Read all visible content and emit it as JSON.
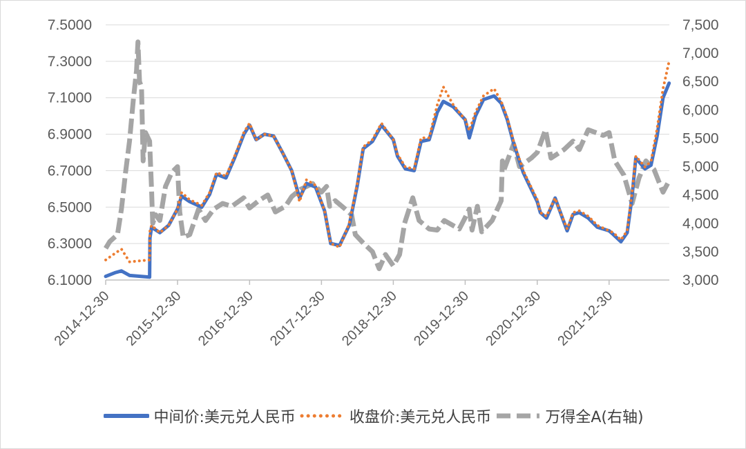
{
  "chart_data": {
    "type": "line",
    "title": "",
    "left_axis": {
      "min": 6.1,
      "max": 7.5,
      "ticks": [
        "6.1000",
        "6.3000",
        "6.5000",
        "6.7000",
        "6.9000",
        "7.1000",
        "7.3000",
        "7.5000"
      ]
    },
    "right_axis": {
      "min": 3000,
      "max": 7500,
      "ticks": [
        "3,000",
        "3,500",
        "4,000",
        "4,500",
        "5,000",
        "5,500",
        "6,000",
        "6,500",
        "7,000",
        "7,500"
      ]
    },
    "x_ticks": [
      "2014-12-30",
      "2015-12-30",
      "2016-12-30",
      "2017-12-30",
      "2018-12-30",
      "2019-12-30",
      "2020-12-30",
      "2021-12-30"
    ],
    "x_range": [
      "2014-12-30",
      "2022-11-01"
    ],
    "grid": "horizontal",
    "legend_position": "bottom",
    "series": [
      {
        "name": "中间价:美元兑人民币",
        "axis": "left",
        "color": "#4472c4",
        "style": "solid",
        "points": [
          [
            "2014-12-30",
            6.12
          ],
          [
            "2015-02-15",
            6.14
          ],
          [
            "2015-03-20",
            6.15
          ],
          [
            "2015-05-01",
            6.125
          ],
          [
            "2015-08-10",
            6.116
          ],
          [
            "2015-08-12",
            6.33
          ],
          [
            "2015-08-20",
            6.39
          ],
          [
            "2015-10-01",
            6.36
          ],
          [
            "2015-11-15",
            6.4
          ],
          [
            "2015-12-30",
            6.49
          ],
          [
            "2016-01-20",
            6.56
          ],
          [
            "2016-03-01",
            6.53
          ],
          [
            "2016-05-01",
            6.5
          ],
          [
            "2016-06-10",
            6.57
          ],
          [
            "2016-07-15",
            6.68
          ],
          [
            "2016-09-01",
            6.66
          ],
          [
            "2016-10-15",
            6.77
          ],
          [
            "2016-12-01",
            6.9
          ],
          [
            "2016-12-30",
            6.95
          ],
          [
            "2017-02-01",
            6.87
          ],
          [
            "2017-03-15",
            6.9
          ],
          [
            "2017-05-01",
            6.89
          ],
          [
            "2017-06-15",
            6.8
          ],
          [
            "2017-08-01",
            6.7
          ],
          [
            "2017-09-10",
            6.55
          ],
          [
            "2017-10-15",
            6.63
          ],
          [
            "2017-11-30",
            6.61
          ],
          [
            "2018-01-15",
            6.48
          ],
          [
            "2018-02-15",
            6.3
          ],
          [
            "2018-04-01",
            6.29
          ],
          [
            "2018-05-20",
            6.4
          ],
          [
            "2018-06-30",
            6.62
          ],
          [
            "2018-07-30",
            6.82
          ],
          [
            "2018-09-15",
            6.86
          ],
          [
            "2018-10-31",
            6.95
          ],
          [
            "2018-12-30",
            6.87
          ],
          [
            "2019-01-20",
            6.78
          ],
          [
            "2019-03-01",
            6.71
          ],
          [
            "2019-04-15",
            6.7
          ],
          [
            "2019-05-20",
            6.86
          ],
          [
            "2019-06-30",
            6.87
          ],
          [
            "2019-08-10",
            7.02
          ],
          [
            "2019-09-10",
            7.08
          ],
          [
            "2019-10-31",
            7.05
          ],
          [
            "2019-12-30",
            6.98
          ],
          [
            "2020-01-20",
            6.88
          ],
          [
            "2020-02-20",
            7.0
          ],
          [
            "2020-04-01",
            7.09
          ],
          [
            "2020-05-25",
            7.11
          ],
          [
            "2020-06-30",
            7.07
          ],
          [
            "2020-07-31",
            6.98
          ],
          [
            "2020-09-01",
            6.85
          ],
          [
            "2020-10-20",
            6.69
          ],
          [
            "2020-12-30",
            6.53
          ],
          [
            "2021-01-15",
            6.47
          ],
          [
            "2021-02-15",
            6.44
          ],
          [
            "2021-03-31",
            6.55
          ],
          [
            "2021-04-20",
            6.49
          ],
          [
            "2021-05-31",
            6.37
          ],
          [
            "2021-06-30",
            6.46
          ],
          [
            "2021-08-01",
            6.47
          ],
          [
            "2021-09-15",
            6.44
          ],
          [
            "2021-10-31",
            6.39
          ],
          [
            "2021-12-30",
            6.37
          ],
          [
            "2022-01-20",
            6.35
          ],
          [
            "2022-02-28",
            6.31
          ],
          [
            "2022-04-01",
            6.36
          ],
          [
            "2022-04-25",
            6.55
          ],
          [
            "2022-05-15",
            6.77
          ],
          [
            "2022-06-30",
            6.71
          ],
          [
            "2022-07-31",
            6.73
          ],
          [
            "2022-08-31",
            6.89
          ],
          [
            "2022-09-30",
            7.1
          ],
          [
            "2022-10-31",
            7.18
          ]
        ]
      },
      {
        "name": "收盘价:美元兑人民币",
        "axis": "left",
        "color": "#ed7d31",
        "style": "dotted",
        "points": [
          [
            "2014-12-30",
            6.21
          ],
          [
            "2015-02-20",
            6.25
          ],
          [
            "2015-03-20",
            6.27
          ],
          [
            "2015-04-30",
            6.2
          ],
          [
            "2015-08-10",
            6.21
          ],
          [
            "2015-08-12",
            6.37
          ],
          [
            "2015-08-20",
            6.4
          ],
          [
            "2015-10-01",
            6.36
          ],
          [
            "2015-11-15",
            6.4
          ],
          [
            "2015-12-30",
            6.49
          ],
          [
            "2016-01-20",
            6.58
          ],
          [
            "2016-03-01",
            6.54
          ],
          [
            "2016-05-01",
            6.51
          ],
          [
            "2016-06-10",
            6.58
          ],
          [
            "2016-07-15",
            6.69
          ],
          [
            "2016-09-01",
            6.67
          ],
          [
            "2016-10-15",
            6.78
          ],
          [
            "2016-12-01",
            6.91
          ],
          [
            "2016-12-30",
            6.96
          ],
          [
            "2017-02-01",
            6.87
          ],
          [
            "2017-03-15",
            6.9
          ],
          [
            "2017-05-01",
            6.89
          ],
          [
            "2017-06-15",
            6.8
          ],
          [
            "2017-08-01",
            6.7
          ],
          [
            "2017-09-10",
            6.53
          ],
          [
            "2017-10-15",
            6.65
          ],
          [
            "2017-11-30",
            6.62
          ],
          [
            "2018-01-15",
            6.48
          ],
          [
            "2018-02-15",
            6.3
          ],
          [
            "2018-04-01",
            6.28
          ],
          [
            "2018-05-20",
            6.41
          ],
          [
            "2018-06-30",
            6.63
          ],
          [
            "2018-07-30",
            6.83
          ],
          [
            "2018-09-15",
            6.87
          ],
          [
            "2018-10-31",
            6.96
          ],
          [
            "2018-12-30",
            6.87
          ],
          [
            "2019-01-20",
            6.79
          ],
          [
            "2019-03-01",
            6.72
          ],
          [
            "2019-04-15",
            6.71
          ],
          [
            "2019-05-20",
            6.88
          ],
          [
            "2019-06-30",
            6.88
          ],
          [
            "2019-08-10",
            7.06
          ],
          [
            "2019-09-10",
            7.16
          ],
          [
            "2019-10-31",
            7.06
          ],
          [
            "2019-12-30",
            6.98
          ],
          [
            "2020-01-20",
            6.92
          ],
          [
            "2020-02-20",
            7.02
          ],
          [
            "2020-04-01",
            7.11
          ],
          [
            "2020-05-25",
            7.15
          ],
          [
            "2020-06-30",
            7.08
          ],
          [
            "2020-07-31",
            6.99
          ],
          [
            "2020-09-01",
            6.86
          ],
          [
            "2020-10-20",
            6.7
          ],
          [
            "2020-12-30",
            6.54
          ],
          [
            "2021-01-15",
            6.47
          ],
          [
            "2021-02-15",
            6.45
          ],
          [
            "2021-03-31",
            6.55
          ],
          [
            "2021-04-20",
            6.49
          ],
          [
            "2021-05-31",
            6.38
          ],
          [
            "2021-06-30",
            6.47
          ],
          [
            "2021-08-01",
            6.48
          ],
          [
            "2021-09-15",
            6.45
          ],
          [
            "2021-10-31",
            6.4
          ],
          [
            "2021-12-30",
            6.37
          ],
          [
            "2022-01-20",
            6.36
          ],
          [
            "2022-02-28",
            6.32
          ],
          [
            "2022-04-01",
            6.37
          ],
          [
            "2022-04-25",
            6.57
          ],
          [
            "2022-05-15",
            6.78
          ],
          [
            "2022-06-30",
            6.72
          ],
          [
            "2022-07-31",
            6.75
          ],
          [
            "2022-08-31",
            6.93
          ],
          [
            "2022-09-30",
            7.15
          ],
          [
            "2022-10-31",
            7.3
          ]
        ]
      },
      {
        "name": "万得全A(右轴)",
        "axis": "right",
        "color": "#a5a5a5",
        "style": "dashed",
        "points": [
          [
            "2014-12-30",
            3560
          ],
          [
            "2015-01-20",
            3680
          ],
          [
            "2015-02-28",
            3800
          ],
          [
            "2015-03-20",
            4250
          ],
          [
            "2015-04-10",
            4900
          ],
          [
            "2015-04-30",
            5450
          ],
          [
            "2015-05-20",
            6200
          ],
          [
            "2015-06-05",
            6700
          ],
          [
            "2015-06-12",
            7200
          ],
          [
            "2015-06-20",
            6500
          ],
          [
            "2015-06-30",
            6400
          ],
          [
            "2015-07-08",
            5100
          ],
          [
            "2015-07-20",
            5600
          ],
          [
            "2015-08-10",
            5450
          ],
          [
            "2015-08-20",
            4600
          ],
          [
            "2015-08-26",
            4000
          ],
          [
            "2015-09-10",
            4150
          ],
          [
            "2015-10-01",
            4050
          ],
          [
            "2015-10-30",
            4650
          ],
          [
            "2015-12-01",
            4900
          ],
          [
            "2015-12-30",
            5000
          ],
          [
            "2016-01-10",
            4200
          ],
          [
            "2016-01-28",
            3750
          ],
          [
            "2016-03-01",
            3800
          ],
          [
            "2016-04-15",
            4250
          ],
          [
            "2016-05-20",
            4050
          ],
          [
            "2016-07-01",
            4250
          ],
          [
            "2016-08-15",
            4350
          ],
          [
            "2016-10-01",
            4300
          ],
          [
            "2016-11-30",
            4450
          ],
          [
            "2016-12-30",
            4270
          ],
          [
            "2017-02-15",
            4400
          ],
          [
            "2017-04-01",
            4500
          ],
          [
            "2017-05-10",
            4200
          ],
          [
            "2017-06-30",
            4300
          ],
          [
            "2017-08-01",
            4470
          ],
          [
            "2017-09-15",
            4600
          ],
          [
            "2017-11-15",
            4700
          ],
          [
            "2017-12-30",
            4550
          ],
          [
            "2018-01-25",
            4650
          ],
          [
            "2018-02-10",
            4300
          ],
          [
            "2018-03-10",
            4400
          ],
          [
            "2018-04-30",
            4250
          ],
          [
            "2018-06-01",
            4150
          ],
          [
            "2018-06-20",
            3800
          ],
          [
            "2018-07-31",
            3650
          ],
          [
            "2018-09-15",
            3500
          ],
          [
            "2018-10-19",
            3200
          ],
          [
            "2018-11-20",
            3450
          ],
          [
            "2018-12-30",
            3250
          ],
          [
            "2019-01-31",
            3450
          ],
          [
            "2019-02-25",
            4000
          ],
          [
            "2019-04-08",
            4450
          ],
          [
            "2019-05-10",
            4050
          ],
          [
            "2019-06-30",
            3900
          ],
          [
            "2019-08-10",
            3880
          ],
          [
            "2019-09-15",
            4050
          ],
          [
            "2019-11-30",
            3900
          ],
          [
            "2019-12-30",
            4100
          ],
          [
            "2020-01-20",
            4250
          ],
          [
            "2020-02-03",
            3880
          ],
          [
            "2020-03-01",
            4300
          ],
          [
            "2020-03-23",
            3850
          ],
          [
            "2020-05-15",
            4050
          ],
          [
            "2020-06-30",
            4400
          ],
          [
            "2020-07-06",
            5100
          ],
          [
            "2020-07-15",
            4950
          ],
          [
            "2020-09-01",
            5400
          ],
          [
            "2020-10-01",
            5000
          ],
          [
            "2020-11-30",
            5150
          ],
          [
            "2020-12-30",
            5250
          ],
          [
            "2021-02-10",
            5650
          ],
          [
            "2021-03-10",
            5150
          ],
          [
            "2021-05-15",
            5300
          ],
          [
            "2021-06-30",
            5450
          ],
          [
            "2021-08-01",
            5300
          ],
          [
            "2021-09-15",
            5650
          ],
          [
            "2021-11-30",
            5550
          ],
          [
            "2021-12-30",
            5600
          ],
          [
            "2022-01-28",
            5100
          ],
          [
            "2022-03-15",
            4850
          ],
          [
            "2022-04-26",
            4350
          ],
          [
            "2022-05-31",
            4800
          ],
          [
            "2022-07-05",
            5100
          ],
          [
            "2022-08-15",
            4950
          ],
          [
            "2022-09-30",
            4550
          ],
          [
            "2022-10-31",
            4750
          ]
        ]
      }
    ]
  },
  "legend": {
    "items": [
      {
        "label": "中间价:美元兑人民币",
        "color": "#4472c4"
      },
      {
        "label": "收盘价:美元兑人民币",
        "color": "#ed7d31"
      },
      {
        "label": "万得全A(右轴)",
        "color": "#a5a5a5"
      }
    ]
  }
}
